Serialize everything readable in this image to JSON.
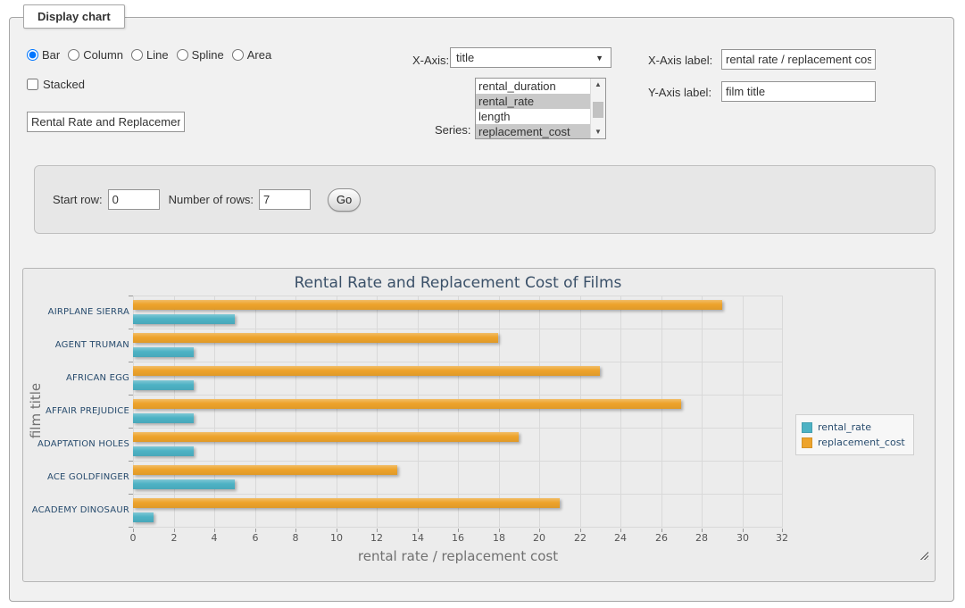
{
  "fieldset": {
    "legend": "Display chart"
  },
  "chart_type": {
    "options": [
      "Bar",
      "Column",
      "Line",
      "Spline",
      "Area"
    ],
    "selected": "Bar",
    "stacked_label": "Stacked",
    "stacked_checked": false
  },
  "title_input": {
    "value": "Rental Rate and Replacement Cost of Films"
  },
  "x_axis_select": {
    "label": "X-Axis:",
    "selected": "title"
  },
  "series_select": {
    "label": "Series:",
    "options": [
      {
        "label": "rental_duration",
        "selected": false
      },
      {
        "label": "rental_rate",
        "selected": true
      },
      {
        "label": "length",
        "selected": false
      },
      {
        "label": "replacement_cost",
        "selected": true
      }
    ]
  },
  "axis_labels": {
    "x_label": "X-Axis label:",
    "x_value": "rental rate / replacement cost",
    "y_label": "Y-Axis label:",
    "y_value": "film title"
  },
  "rows_panel": {
    "start_row_label": "Start row:",
    "start_row_value": "0",
    "num_rows_label": "Number of rows:",
    "num_rows_value": "7",
    "go_label": "Go"
  },
  "icons": {
    "dropdown_arrow": "▼",
    "scroll_up": "▲",
    "scroll_down": "▼"
  },
  "chart_data": {
    "type": "bar",
    "title": "Rental Rate and Replacement Cost of Films",
    "xlabel": "rental rate / replacement cost",
    "ylabel": "film title",
    "categories": [
      "AIRPLANE SIERRA",
      "AGENT TRUMAN",
      "AFRICAN EGG",
      "AFFAIR PREJUDICE",
      "ADAPTATION HOLES",
      "ACE GOLDFINGER",
      "ACADEMY DINOSAUR"
    ],
    "series": [
      {
        "name": "rental_rate",
        "color": "#4DB2C4",
        "values": [
          4.99,
          2.99,
          2.99,
          2.99,
          2.99,
          4.99,
          0.99
        ]
      },
      {
        "name": "replacement_cost",
        "color": "#EDA32B",
        "values": [
          28.99,
          17.99,
          22.99,
          26.99,
          18.99,
          12.99,
          20.99
        ]
      }
    ],
    "bar_order_in_group": [
      "replacement_cost",
      "rental_rate"
    ],
    "xlim": [
      0,
      32
    ],
    "tick_step": 2,
    "xticks": [
      0,
      2,
      4,
      6,
      8,
      10,
      12,
      14,
      16,
      18,
      20,
      22,
      24,
      26,
      28,
      30,
      32
    ],
    "grid": true,
    "legend_position": "right"
  }
}
